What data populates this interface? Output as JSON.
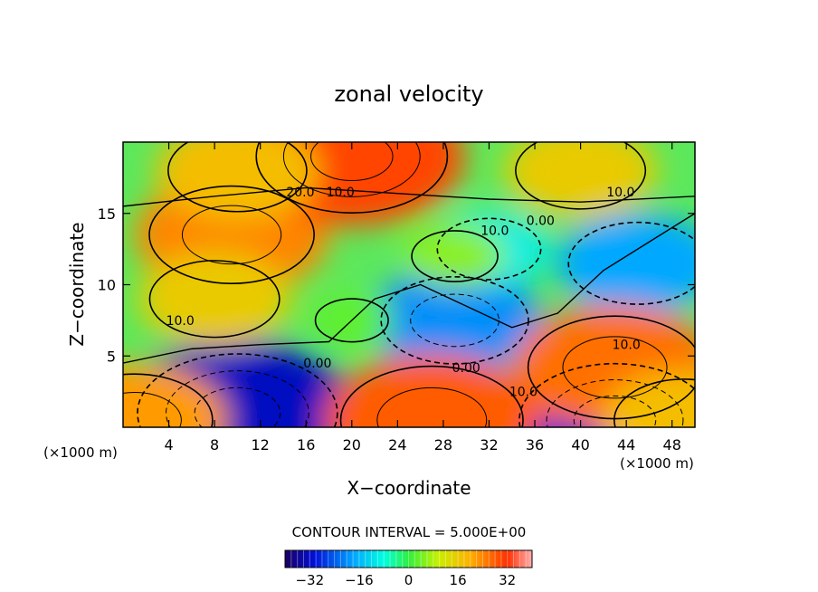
{
  "chart_data": {
    "type": "heatmap",
    "title": "zonal velocity",
    "xlabel": "X−coordinate",
    "ylabel": "Z−coordinate",
    "x_unit_left": "(×1000 m)",
    "x_unit_right": "(×1000 m)",
    "xlim": [
      0,
      50
    ],
    "ylim": [
      0,
      20
    ],
    "x_ticks": [
      4,
      8,
      12,
      16,
      20,
      24,
      28,
      32,
      36,
      40,
      44,
      48
    ],
    "x_tick_labels": [
      "4",
      "8",
      "12",
      "16",
      "20",
      "24",
      "28",
      "32",
      "36",
      "40",
      "44",
      "48"
    ],
    "y_ticks": [
      5,
      10,
      15
    ],
    "y_tick_labels": [
      "5",
      "10",
      "15"
    ],
    "contour_interval_label": "CONTOUR INTERVAL = 5.000E+00",
    "colorbar": {
      "range": [
        -40,
        40
      ],
      "ticks": [
        -32,
        -16,
        0,
        16,
        32
      ],
      "tick_labels": [
        "−32",
        "−16",
        "0",
        "16",
        "32"
      ]
    },
    "contour_labels": [
      {
        "text": "20.0",
        "x": 15.5,
        "z": 16.5
      },
      {
        "text": "10.0",
        "x": 19.0,
        "z": 16.5
      },
      {
        "text": "10.0",
        "x": 43.5,
        "z": 16.5
      },
      {
        "text": "10.0",
        "x": 32.5,
        "z": 13.8
      },
      {
        "text": "0.00",
        "x": 36.5,
        "z": 14.5
      },
      {
        "text": "10.0",
        "x": 5.0,
        "z": 7.5
      },
      {
        "text": "0.00",
        "x": 17.0,
        "z": 4.5
      },
      {
        "text": "0.00",
        "x": 30.0,
        "z": 4.2
      },
      {
        "text": "10.0",
        "x": 35.0,
        "z": 2.5
      },
      {
        "text": "10.0",
        "x": 44.0,
        "z": 5.8
      }
    ],
    "field_centers": [
      {
        "x": 10,
        "z": 1.0,
        "value": -32
      },
      {
        "x": 43,
        "z": 0.5,
        "value": -30
      },
      {
        "x": 29,
        "z": 7.5,
        "value": -20
      },
      {
        "x": 45,
        "z": 11.5,
        "value": -18
      },
      {
        "x": 32,
        "z": 12.5,
        "value": -10
      },
      {
        "x": 20,
        "z": 7.5,
        "value": 3
      },
      {
        "x": 9.5,
        "z": 13.5,
        "value": 24
      },
      {
        "x": 8,
        "z": 9.0,
        "value": 16
      },
      {
        "x": 29,
        "z": 12.0,
        "value": 6
      },
      {
        "x": 43,
        "z": 4.2,
        "value": 26
      },
      {
        "x": 27,
        "z": 0.5,
        "value": 28
      },
      {
        "x": 1,
        "z": 0.5,
        "value": 22
      },
      {
        "x": 49,
        "z": 0.5,
        "value": 18
      },
      {
        "x": 20,
        "z": 19.0,
        "value": 30
      },
      {
        "x": 10,
        "z": 18.0,
        "value": 18
      },
      {
        "x": 40,
        "z": 18.0,
        "value": 16
      }
    ]
  }
}
